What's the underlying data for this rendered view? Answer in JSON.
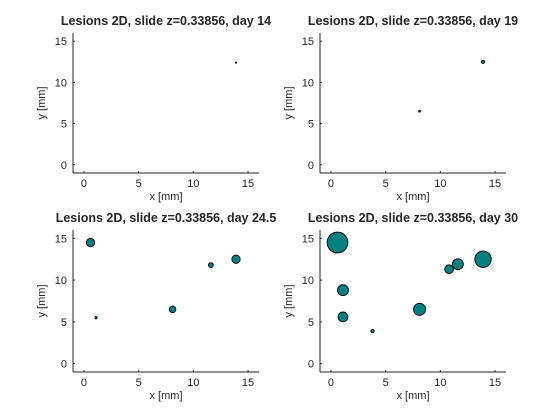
{
  "chart_data": [
    {
      "type": "scatter",
      "title": "Lesions 2D, slide z=0.33856, day 14",
      "xlabel": "x [mm]",
      "ylabel": "y [mm]",
      "xlim": [
        -1,
        16
      ],
      "ylim": [
        -1,
        16
      ],
      "xticks": [
        0,
        5,
        10,
        15
      ],
      "yticks": [
        0,
        5,
        10,
        15
      ],
      "marker_color": "#008080",
      "points": [
        {
          "x": 13.9,
          "y": 12.4,
          "r": 0.05
        }
      ]
    },
    {
      "type": "scatter",
      "title": "Lesions 2D, slide z=0.33856, day 19",
      "xlabel": "x [mm]",
      "ylabel": "y [mm]",
      "xlim": [
        -1,
        16
      ],
      "ylim": [
        -1,
        16
      ],
      "xticks": [
        0,
        5,
        10,
        15
      ],
      "yticks": [
        0,
        5,
        10,
        15
      ],
      "marker_color": "#008080",
      "points": [
        {
          "x": 13.9,
          "y": 12.5,
          "r": 0.15
        },
        {
          "x": 8.1,
          "y": 6.5,
          "r": 0.08
        }
      ]
    },
    {
      "type": "scatter",
      "title": "Lesions 2D, slide z=0.33856, day 24.5",
      "xlabel": "x [mm]",
      "ylabel": "y [mm]",
      "xlim": [
        -1,
        16
      ],
      "ylim": [
        -1,
        16
      ],
      "xticks": [
        0,
        5,
        10,
        15
      ],
      "yticks": [
        0,
        5,
        10,
        15
      ],
      "marker_color": "#008080",
      "points": [
        {
          "x": 0.6,
          "y": 14.5,
          "r": 0.38
        },
        {
          "x": 13.9,
          "y": 12.5,
          "r": 0.38
        },
        {
          "x": 11.6,
          "y": 11.8,
          "r": 0.22
        },
        {
          "x": 8.1,
          "y": 6.5,
          "r": 0.3
        },
        {
          "x": 1.1,
          "y": 5.5,
          "r": 0.1
        }
      ]
    },
    {
      "type": "scatter",
      "title": "Lesions 2D, slide z=0.33856, day 30",
      "xlabel": "x [mm]",
      "ylabel": "y [mm]",
      "xlim": [
        -1,
        16
      ],
      "ylim": [
        -1,
        16
      ],
      "xticks": [
        0,
        5,
        10,
        15
      ],
      "yticks": [
        0,
        5,
        10,
        15
      ],
      "marker_color": "#008080",
      "points": [
        {
          "x": 0.6,
          "y": 14.5,
          "r": 0.95
        },
        {
          "x": 13.9,
          "y": 12.5,
          "r": 0.75
        },
        {
          "x": 11.6,
          "y": 11.9,
          "r": 0.5
        },
        {
          "x": 10.8,
          "y": 11.3,
          "r": 0.4
        },
        {
          "x": 1.1,
          "y": 8.8,
          "r": 0.5
        },
        {
          "x": 8.1,
          "y": 6.5,
          "r": 0.55
        },
        {
          "x": 1.1,
          "y": 5.6,
          "r": 0.45
        },
        {
          "x": 3.8,
          "y": 3.9,
          "r": 0.15
        }
      ]
    }
  ]
}
